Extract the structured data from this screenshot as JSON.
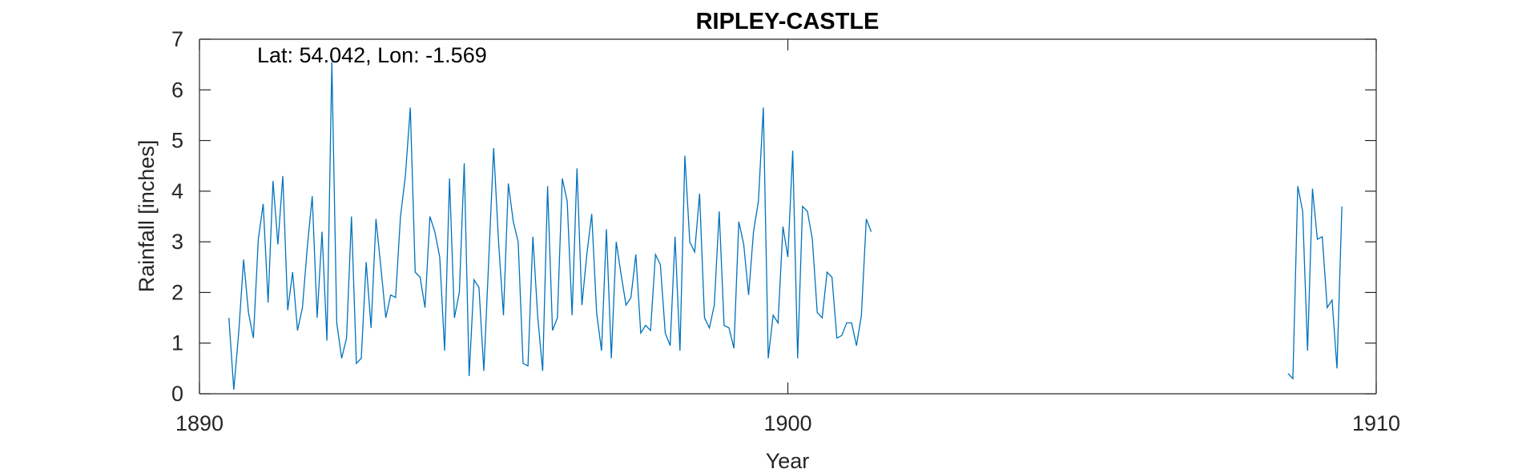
{
  "chart_data": {
    "type": "line",
    "title": "RIPLEY-CASTLE",
    "xlabel": "Year",
    "ylabel": "Rainfall [inches]",
    "annotation": "Lat: 54.042, Lon: -1.569",
    "xlim": [
      1890,
      1910
    ],
    "ylim": [
      0,
      7
    ],
    "xticks": [
      1890,
      1900,
      1910
    ],
    "yticks": [
      0,
      1,
      2,
      3,
      4,
      5,
      6,
      7
    ],
    "grid": false,
    "line_color": "#0072BD",
    "segments": [
      {
        "start_year": 1890.5,
        "values": [
          1.5,
          0.08,
          1.2,
          2.65,
          1.6,
          1.1,
          3.05,
          3.75,
          1.8,
          4.2,
          2.95,
          4.3,
          1.65,
          2.4,
          1.25,
          1.7,
          2.9,
          3.9,
          1.5,
          3.2,
          1.05,
          6.55,
          1.4,
          0.7,
          1.1,
          3.5,
          0.6,
          0.7,
          2.6,
          1.3,
          3.45,
          2.5,
          1.5,
          1.95,
          1.9,
          3.5,
          4.3,
          5.65,
          2.4,
          2.3,
          1.7,
          3.5,
          3.2,
          2.7,
          0.85,
          4.25,
          1.5,
          2.0,
          4.55,
          0.35,
          2.25,
          2.1,
          0.45,
          2.65,
          4.85,
          3.0,
          1.55,
          4.15,
          3.4,
          3.0,
          0.6,
          0.55,
          3.1,
          1.5,
          0.45,
          4.1,
          1.25,
          1.5,
          4.25,
          3.8,
          1.55,
          4.45,
          1.75,
          2.75,
          3.55,
          1.6,
          0.85,
          3.25,
          0.7,
          3.0,
          2.35,
          1.75,
          1.9,
          2.75,
          1.2,
          1.35,
          1.25,
          2.75,
          2.55,
          1.2,
          0.95,
          3.1,
          0.85,
          4.7,
          3.0,
          2.8,
          3.95,
          1.5,
          1.3,
          1.75,
          3.6,
          1.35,
          1.3,
          0.9,
          3.4,
          2.95,
          1.95,
          3.2,
          3.8,
          5.65,
          0.7,
          1.55,
          1.4,
          3.3,
          2.7,
          4.8,
          0.7,
          3.7,
          3.6,
          3.05,
          1.6,
          1.5,
          2.4,
          2.3,
          1.1,
          1.15,
          1.4,
          1.4,
          0.95,
          1.55,
          3.45,
          3.2
        ]
      },
      {
        "start_year": 1908.5,
        "values": [
          0.4,
          0.3,
          4.1,
          3.6,
          0.85,
          4.05,
          3.05,
          3.1,
          1.7,
          1.85,
          0.5,
          3.7
        ]
      }
    ]
  }
}
